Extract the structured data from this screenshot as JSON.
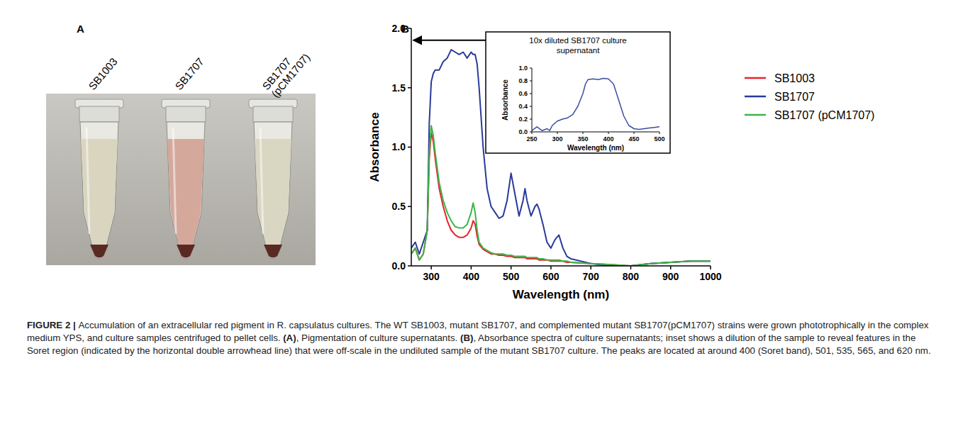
{
  "figure": {
    "panel_labels": [
      "A",
      "B"
    ],
    "tube_labels": [
      "SB1003",
      "SB1707",
      "SB1707 (pCM1707)"
    ],
    "caption": [
      "FIGURE 2 | ",
      "Accumulation of an extracellular red pigment in R. capsulatus cultures. The WT SB1003, mutant SB1707, and complemented mutant SB1707(pCM1707) strains were grown phototrophically in the complex medium YPS, and culture samples centrifuged to pellet cells. ",
      "(A)",
      ", Pigmentation of culture supernatants. ",
      "(B)",
      ", Absorbance spectra of culture supernatants; inset shows a dilution of the sample to reveal features in the Soret region (indicated by the horizontal double arrowhead line) that were off-scale in the undiluted sample of the mutant SB1707 culture. The peaks are located at around 400 (Soret band), 501, 535, 565, and 620 nm."
    ]
  },
  "chart_data": [
    {
      "type": "line",
      "x_label": "Wavelength (nm)",
      "y_label": "Absorbance",
      "x": [
        250,
        260,
        270,
        280,
        290,
        295,
        300,
        305,
        310,
        320,
        330,
        340,
        350,
        360,
        370,
        380,
        390,
        400,
        405,
        410,
        415,
        420,
        430,
        440,
        450,
        460,
        470,
        480,
        490,
        500,
        510,
        520,
        530,
        535,
        540,
        550,
        560,
        565,
        570,
        580,
        590,
        600,
        610,
        620,
        630,
        640,
        650,
        700,
        750,
        800,
        850,
        900,
        950,
        1000
      ],
      "series": [
        {
          "name": "SB1003",
          "color": "#e8232b",
          "values": [
            0.1,
            0.15,
            0.05,
            0.1,
            0.3,
            0.9,
            1.12,
            1.05,
            0.9,
            0.65,
            0.5,
            0.38,
            0.3,
            0.26,
            0.24,
            0.24,
            0.26,
            0.32,
            0.38,
            0.35,
            0.25,
            0.18,
            0.14,
            0.12,
            0.1,
            0.1,
            0.09,
            0.09,
            0.08,
            0.08,
            0.07,
            0.07,
            0.07,
            0.07,
            0.06,
            0.06,
            0.06,
            0.06,
            0.05,
            0.05,
            0.05,
            0.04,
            0.04,
            0.04,
            0.04,
            0.03,
            0.03,
            0.02,
            0.01,
            0.0,
            0.02,
            0.03,
            0.04,
            0.04
          ]
        },
        {
          "name": "SB1707",
          "color": "#283a9a",
          "values": [
            0.15,
            0.2,
            0.1,
            0.2,
            0.3,
            1.2,
            1.55,
            1.62,
            1.65,
            1.65,
            1.72,
            1.75,
            1.82,
            1.8,
            1.78,
            1.8,
            1.75,
            1.8,
            1.78,
            1.78,
            1.7,
            1.5,
            1.0,
            0.65,
            0.5,
            0.45,
            0.4,
            0.42,
            0.55,
            0.78,
            0.6,
            0.42,
            0.55,
            0.65,
            0.55,
            0.42,
            0.5,
            0.52,
            0.48,
            0.35,
            0.2,
            0.15,
            0.22,
            0.26,
            0.15,
            0.08,
            0.06,
            0.02,
            0.0,
            0.0,
            0.02,
            0.03,
            0.04,
            0.04
          ]
        },
        {
          "name": "SB1707 (pCM1707)",
          "color": "#3cb44b",
          "values": [
            0.1,
            0.15,
            0.05,
            0.1,
            0.3,
            0.95,
            1.18,
            1.1,
            0.95,
            0.7,
            0.55,
            0.45,
            0.38,
            0.33,
            0.32,
            0.32,
            0.35,
            0.45,
            0.53,
            0.45,
            0.3,
            0.2,
            0.15,
            0.13,
            0.11,
            0.1,
            0.1,
            0.1,
            0.09,
            0.09,
            0.08,
            0.08,
            0.08,
            0.08,
            0.07,
            0.07,
            0.07,
            0.07,
            0.06,
            0.06,
            0.05,
            0.05,
            0.05,
            0.05,
            0.04,
            0.04,
            0.03,
            0.02,
            0.01,
            0.0,
            0.02,
            0.03,
            0.04,
            0.04
          ]
        }
      ],
      "xlim": [
        250,
        1000
      ],
      "xticks": [
        300,
        400,
        500,
        600,
        700,
        800,
        900,
        1000
      ],
      "ylim": [
        0,
        2.0
      ],
      "yticks": [
        {
          "value": 0,
          "label": "0.0"
        },
        {
          "value": 0.5,
          "label": "0.5"
        },
        {
          "value": 1.0,
          "label": "1.0"
        },
        {
          "value": 1.5,
          "label": "1.5"
        },
        {
          "value": 2.0,
          "label": "2.0"
        }
      ],
      "grid": false,
      "legend": "right",
      "annotations": [
        {
          "type": "double_arrow",
          "x": [
            255,
            470
          ],
          "y": 1.9
        }
      ]
    },
    {
      "type": "line",
      "title": "10x diluted SB1707 culture supernatant",
      "x_label": "Wavelength (nm)",
      "y_label": "Absorbance",
      "x": [
        250,
        260,
        270,
        280,
        285,
        290,
        300,
        310,
        320,
        330,
        340,
        350,
        355,
        360,
        370,
        380,
        390,
        400,
        410,
        420,
        430,
        440,
        450,
        460,
        470,
        480,
        490,
        500
      ],
      "series": [
        {
          "name": "SB1707",
          "color": "#3b4ea0",
          "values": [
            0.02,
            0.08,
            0.02,
            0.05,
            0.02,
            0.1,
            0.17,
            0.2,
            0.22,
            0.27,
            0.4,
            0.6,
            0.75,
            0.82,
            0.83,
            0.82,
            0.84,
            0.83,
            0.75,
            0.5,
            0.25,
            0.1,
            0.05,
            0.04,
            0.05,
            0.06,
            0.07,
            0.08
          ]
        }
      ],
      "xlim": [
        250,
        500
      ],
      "xticks": [
        250,
        300,
        350,
        400,
        450,
        500
      ],
      "ylim": [
        0,
        1.0
      ],
      "yticks": [
        {
          "value": 0,
          "label": "0.0"
        },
        {
          "value": 0.2,
          "label": "0.2"
        },
        {
          "value": 0.4,
          "label": "0.4"
        },
        {
          "value": 0.6,
          "label": "0.6"
        },
        {
          "value": 0.8,
          "label": "0.8"
        },
        {
          "value": 1.0,
          "label": "1.0"
        }
      ],
      "grid": false
    }
  ]
}
